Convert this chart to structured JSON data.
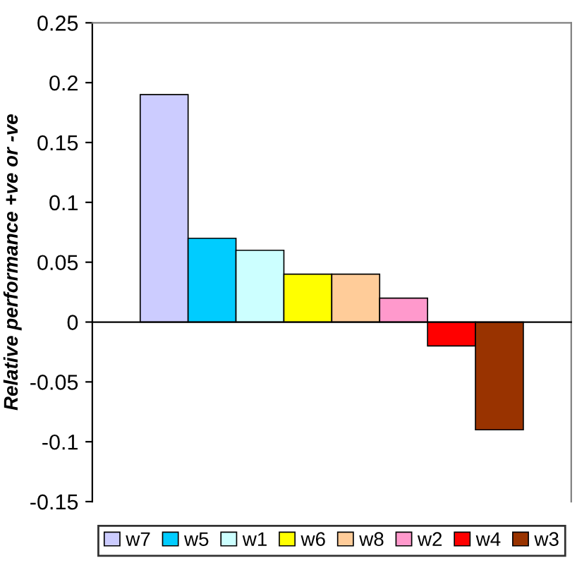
{
  "chart_data": {
    "type": "bar",
    "ylabel": "Relative performance +ve or -ve",
    "categories": [
      null
    ],
    "series": [
      {
        "name": "w7",
        "color": "#ccccff",
        "values": [
          0.19
        ]
      },
      {
        "name": "w5",
        "color": "#00ccff",
        "values": [
          0.07
        ]
      },
      {
        "name": "w1",
        "color": "#ccffff",
        "values": [
          0.06
        ]
      },
      {
        "name": "w6",
        "color": "#ffff00",
        "values": [
          0.04
        ]
      },
      {
        "name": "w8",
        "color": "#ffcc99",
        "values": [
          0.04
        ]
      },
      {
        "name": "w2",
        "color": "#ff99cc",
        "values": [
          0.02
        ]
      },
      {
        "name": "w4",
        "color": "#ff0000",
        "values": [
          -0.02
        ]
      },
      {
        "name": "w3",
        "color": "#993300",
        "values": [
          -0.09
        ]
      }
    ],
    "ylim": [
      -0.15,
      0.25
    ],
    "yticks": [
      -0.15,
      -0.1,
      -0.05,
      0,
      0.05,
      0.1,
      0.15,
      0.2,
      0.25
    ],
    "legend": "bottom"
  }
}
